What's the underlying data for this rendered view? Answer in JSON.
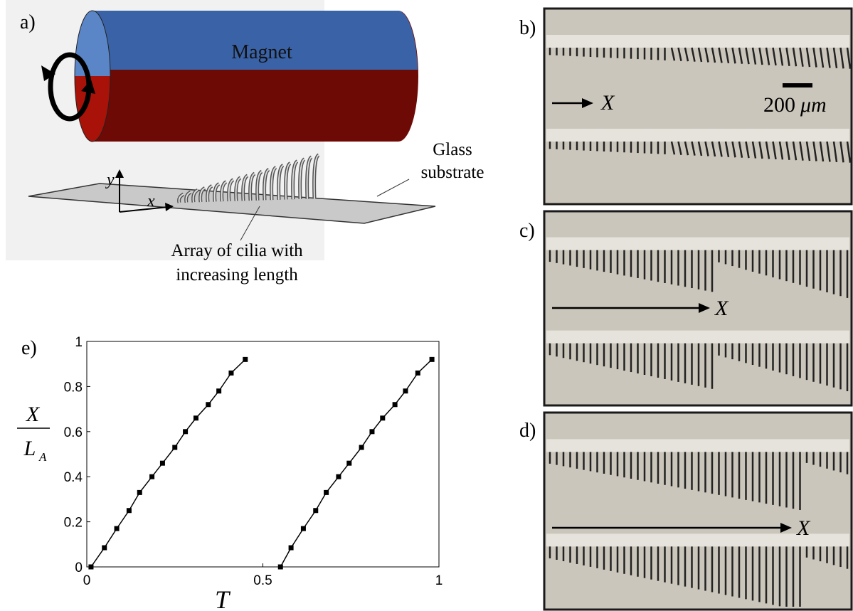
{
  "panels": {
    "a": {
      "label": "a)",
      "magnet": "Magnet",
      "substrate_line1": "Glass",
      "substrate_line2": "substrate",
      "axis_y": "y",
      "axis_x": "x",
      "caption_line1": "Array of cilia with",
      "caption_line2": "increasing length"
    },
    "b": {
      "label": "b)",
      "arrow_label": "X",
      "scale_value": "200",
      "scale_unit": "μm"
    },
    "c": {
      "label": "c)",
      "arrow_label": "X"
    },
    "d": {
      "label": "d)",
      "arrow_label": "X"
    }
  },
  "chart_data": {
    "type": "line",
    "panel_label": "e)",
    "xlabel": "T",
    "ylabel": {
      "numerator": "X",
      "denominator": "L",
      "denominator_subscript": "A"
    },
    "series": [
      {
        "color": "#000000",
        "x": [
          0.012,
          0.05,
          0.085,
          0.12,
          0.15,
          0.185,
          0.215,
          0.25,
          0.28,
          0.31,
          0.345,
          0.375,
          0.41,
          0.45
        ],
        "values": [
          0,
          0.085,
          0.17,
          0.25,
          0.33,
          0.4,
          0.46,
          0.53,
          0.6,
          0.66,
          0.72,
          0.78,
          0.86,
          0.92
        ]
      },
      {
        "color": "#000000",
        "x": [
          0.55,
          0.58,
          0.615,
          0.65,
          0.68,
          0.715,
          0.745,
          0.78,
          0.81,
          0.84,
          0.875,
          0.905,
          0.94,
          0.98
        ],
        "values": [
          0,
          0.085,
          0.17,
          0.25,
          0.33,
          0.4,
          0.46,
          0.53,
          0.6,
          0.66,
          0.72,
          0.78,
          0.86,
          0.92
        ]
      }
    ],
    "xlim": [
      0,
      1
    ],
    "ylim": [
      0,
      1
    ],
    "xticks": [
      0,
      0.5,
      1
    ],
    "yticks": [
      0,
      0.2,
      0.4,
      0.6,
      0.8,
      1
    ]
  }
}
